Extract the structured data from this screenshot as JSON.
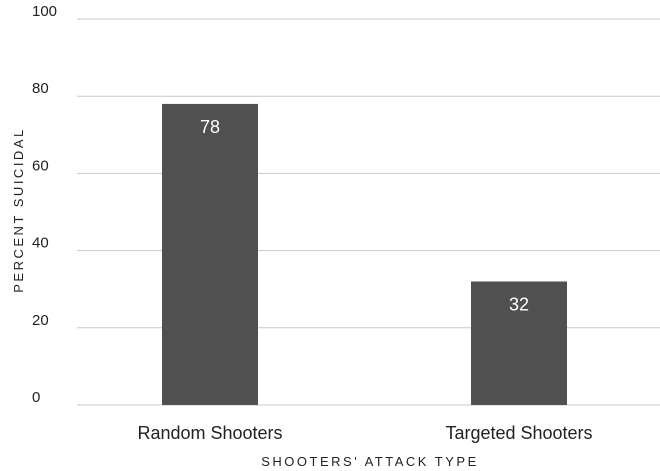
{
  "chart_data": {
    "type": "bar",
    "categories": [
      "Random Shooters",
      "Targeted Shooters"
    ],
    "values": [
      78,
      32
    ],
    "data_labels": [
      "78",
      "32"
    ],
    "title": "",
    "xlabel": "SHOOTERS' ATTACK TYPE",
    "ylabel": "PERCENT SUICIDAL",
    "ylim": [
      0,
      100
    ],
    "yticks": [
      "0",
      "20",
      "40",
      "60",
      "80",
      "100"
    ],
    "grid": "horizontal",
    "legend": "none",
    "bar_color": "#505050",
    "grid_color": "#c8c8c8"
  }
}
